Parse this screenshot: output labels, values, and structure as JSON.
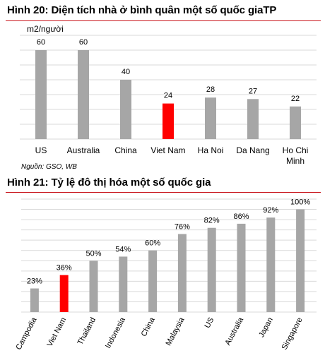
{
  "charts": {
    "housing": {
      "title": "Hình 20: Diện tích nhà ở bình quân một số quốc giaTP",
      "unit": "m2/người",
      "source": "Nguồn: GSO, WB"
    },
    "urban": {
      "title": "Hình 21: Tỷ lệ đô thị hóa một số quốc gia"
    }
  },
  "colors": {
    "bar": "#a6a6a6",
    "highlight": "#ff0000",
    "grid": "#d9d9d9",
    "rule": "#c9141b"
  },
  "chart_data": [
    {
      "type": "bar",
      "title": "Hình 20: Diện tích nhà ở bình quân một số quốc giaTP",
      "ylabel": "m2/người",
      "categories": [
        "US",
        "Australia",
        "China",
        "Viet Nam",
        "Ha Noi",
        "Da Nang",
        "Ho Chi Minh"
      ],
      "values": [
        60,
        60,
        40,
        24,
        28,
        27,
        22
      ],
      "highlight": "Viet Nam",
      "ylim": [
        0,
        70
      ],
      "grid": true
    },
    {
      "type": "bar",
      "title": "Hình 21: Tỷ lệ đô thị hóa một số quốc gia",
      "categories": [
        "Campodia",
        "Viet Nam",
        "Thailand",
        "Indonesia",
        "China",
        "Malaysia",
        "US",
        "Australia",
        "Japan",
        "Singapore"
      ],
      "values": [
        23,
        36,
        50,
        54,
        60,
        76,
        82,
        86,
        92,
        100
      ],
      "labels": [
        "23%",
        "36%",
        "50%",
        "54%",
        "60%",
        "76%",
        "82%",
        "86%",
        "92%",
        "100%"
      ],
      "highlight": "Viet Nam",
      "ylim": [
        0,
        110
      ],
      "grid": true
    }
  ]
}
